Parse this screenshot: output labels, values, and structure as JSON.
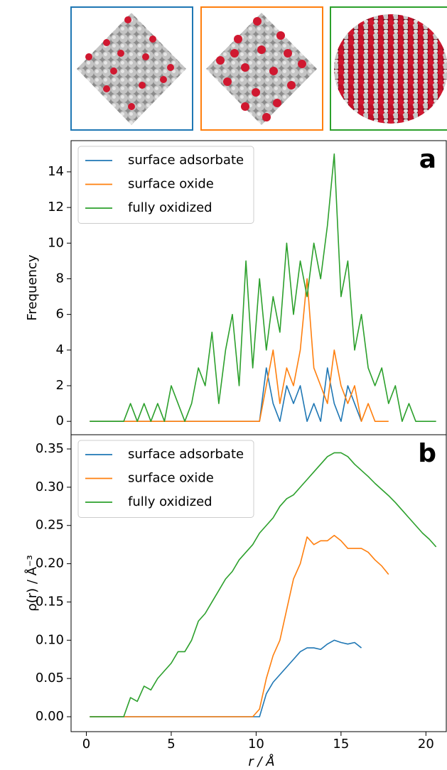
{
  "chart_data": [
    {
      "type": "line",
      "panel_label": "a",
      "ylabel": "Frequency",
      "xlim": [
        -0.9,
        21.2
      ],
      "ylim": [
        -0.75,
        15.75
      ],
      "yticks": [
        0,
        2,
        4,
        6,
        8,
        10,
        12,
        14
      ],
      "legend": "upper left",
      "x": [
        0.2,
        0.6,
        1.0,
        1.4,
        1.8,
        2.2,
        2.6,
        3.0,
        3.4,
        3.8,
        4.2,
        4.6,
        5.0,
        5.4,
        5.8,
        6.2,
        6.6,
        7.0,
        7.4,
        7.8,
        8.2,
        8.6,
        9.0,
        9.4,
        9.8,
        10.2,
        10.6,
        11.0,
        11.4,
        11.8,
        12.2,
        12.6,
        13.0,
        13.4,
        13.8,
        14.2,
        14.6,
        15.0,
        15.4,
        15.8,
        16.2,
        16.6,
        17.0,
        17.4,
        17.8,
        18.2,
        18.6,
        19.0,
        19.4,
        19.8,
        20.2,
        20.6
      ],
      "series": [
        {
          "name": "surface adsorbate",
          "color": "#1f77b4",
          "values": [
            0,
            0,
            0,
            0,
            0,
            0,
            0,
            0,
            0,
            0,
            0,
            0,
            0,
            0,
            0,
            0,
            0,
            0,
            0,
            0,
            0,
            0,
            0,
            0,
            0,
            0,
            3,
            1,
            0,
            2,
            1,
            2,
            0,
            1,
            0,
            3,
            1,
            0,
            2,
            1,
            0,
            null,
            null,
            null,
            null,
            null,
            null,
            null,
            null,
            null,
            null,
            null
          ]
        },
        {
          "name": "surface oxide",
          "color": "#ff7f0e",
          "values": [
            0,
            0,
            0,
            0,
            0,
            0,
            0,
            0,
            0,
            0,
            0,
            0,
            0,
            0,
            0,
            0,
            0,
            0,
            0,
            0,
            0,
            0,
            0,
            0,
            0,
            0,
            2,
            4,
            1,
            3,
            2,
            4,
            8,
            3,
            2,
            1,
            4,
            2,
            1,
            2,
            0,
            1,
            0,
            0,
            0,
            null,
            null,
            null,
            null,
            null,
            null,
            null
          ]
        },
        {
          "name": "fully oxidized",
          "color": "#2ca02c",
          "values": [
            0,
            0,
            0,
            0,
            0,
            0,
            1,
            0,
            1,
            0,
            1,
            0,
            2,
            1,
            0,
            1,
            3,
            2,
            5,
            1,
            4,
            6,
            2,
            9,
            3,
            8,
            4,
            7,
            5,
            10,
            6,
            9,
            7,
            10,
            8,
            11,
            15,
            7,
            9,
            4,
            6,
            3,
            2,
            3,
            1,
            2,
            0,
            1,
            0,
            0,
            0,
            0
          ]
        }
      ]
    },
    {
      "type": "line",
      "panel_label": "b",
      "ylabel": "ρ(r) / Å⁻³",
      "xlabel": "r / Å",
      "xlim": [
        -0.9,
        21.2
      ],
      "xticks": [
        0,
        5,
        10,
        15,
        20
      ],
      "ylim": [
        -0.0195,
        0.3686
      ],
      "yticks": [
        {
          "value": 0,
          "label": "0.00"
        },
        0.05,
        {
          "value": 0.1,
          "label": "0.10"
        },
        0.15,
        {
          "value": 0.2,
          "label": "0.20"
        },
        0.25,
        {
          "value": 0.3,
          "label": "0.30"
        },
        0.35
      ],
      "legend": "upper left",
      "x": [
        0.2,
        0.6,
        1.0,
        1.4,
        1.8,
        2.2,
        2.6,
        3.0,
        3.4,
        3.8,
        4.2,
        4.6,
        5.0,
        5.4,
        5.8,
        6.2,
        6.6,
        7.0,
        7.4,
        7.8,
        8.2,
        8.6,
        9.0,
        9.4,
        9.8,
        10.2,
        10.6,
        11.0,
        11.4,
        11.8,
        12.2,
        12.6,
        13.0,
        13.4,
        13.8,
        14.2,
        14.6,
        15.0,
        15.4,
        15.8,
        16.2,
        16.6,
        17.0,
        17.4,
        17.8,
        18.2,
        18.6,
        19.0,
        19.4,
        19.8,
        20.2,
        20.6
      ],
      "series": [
        {
          "name": "surface adsorbate",
          "color": "#1f77b4",
          "values": [
            0,
            0,
            0,
            0,
            0,
            0,
            0,
            0,
            0,
            0,
            0,
            0,
            0,
            0,
            0,
            0,
            0,
            0,
            0,
            0,
            0,
            0,
            0,
            0,
            0,
            0,
            0.03,
            0.045,
            0.055,
            0.065,
            0.075,
            0.085,
            0.09,
            0.09,
            0.088,
            0.095,
            0.1,
            0.097,
            0.095,
            0.097,
            0.09,
            null,
            null,
            null,
            null,
            null,
            null,
            null,
            null,
            null,
            null,
            null
          ]
        },
        {
          "name": "surface oxide",
          "color": "#ff7f0e",
          "values": [
            0,
            0,
            0,
            0,
            0,
            0,
            0,
            0,
            0,
            0,
            0,
            0,
            0,
            0,
            0,
            0,
            0,
            0,
            0,
            0,
            0,
            0,
            0,
            0,
            0,
            0.01,
            0.05,
            0.08,
            0.1,
            0.14,
            0.18,
            0.2,
            0.235,
            0.225,
            0.23,
            0.23,
            0.237,
            0.23,
            0.22,
            0.22,
            0.22,
            0.215,
            0.205,
            0.197,
            0.186,
            null,
            null,
            null,
            null,
            null,
            null,
            null
          ]
        },
        {
          "name": "fully oxidized",
          "color": "#2ca02c",
          "values": [
            0,
            0,
            0,
            0,
            0,
            0,
            0.025,
            0.02,
            0.04,
            0.035,
            0.05,
            0.06,
            0.07,
            0.085,
            0.085,
            0.1,
            0.125,
            0.135,
            0.15,
            0.165,
            0.18,
            0.19,
            0.205,
            0.215,
            0.225,
            0.24,
            0.25,
            0.26,
            0.275,
            0.285,
            0.29,
            0.3,
            0.31,
            0.32,
            0.33,
            0.34,
            0.345,
            0.345,
            0.34,
            0.33,
            0.322,
            0.314,
            0.305,
            0.297,
            0.289,
            0.28,
            0.27,
            0.26,
            0.25,
            0.24,
            0.232,
            0.222
          ]
        }
      ]
    }
  ]
}
